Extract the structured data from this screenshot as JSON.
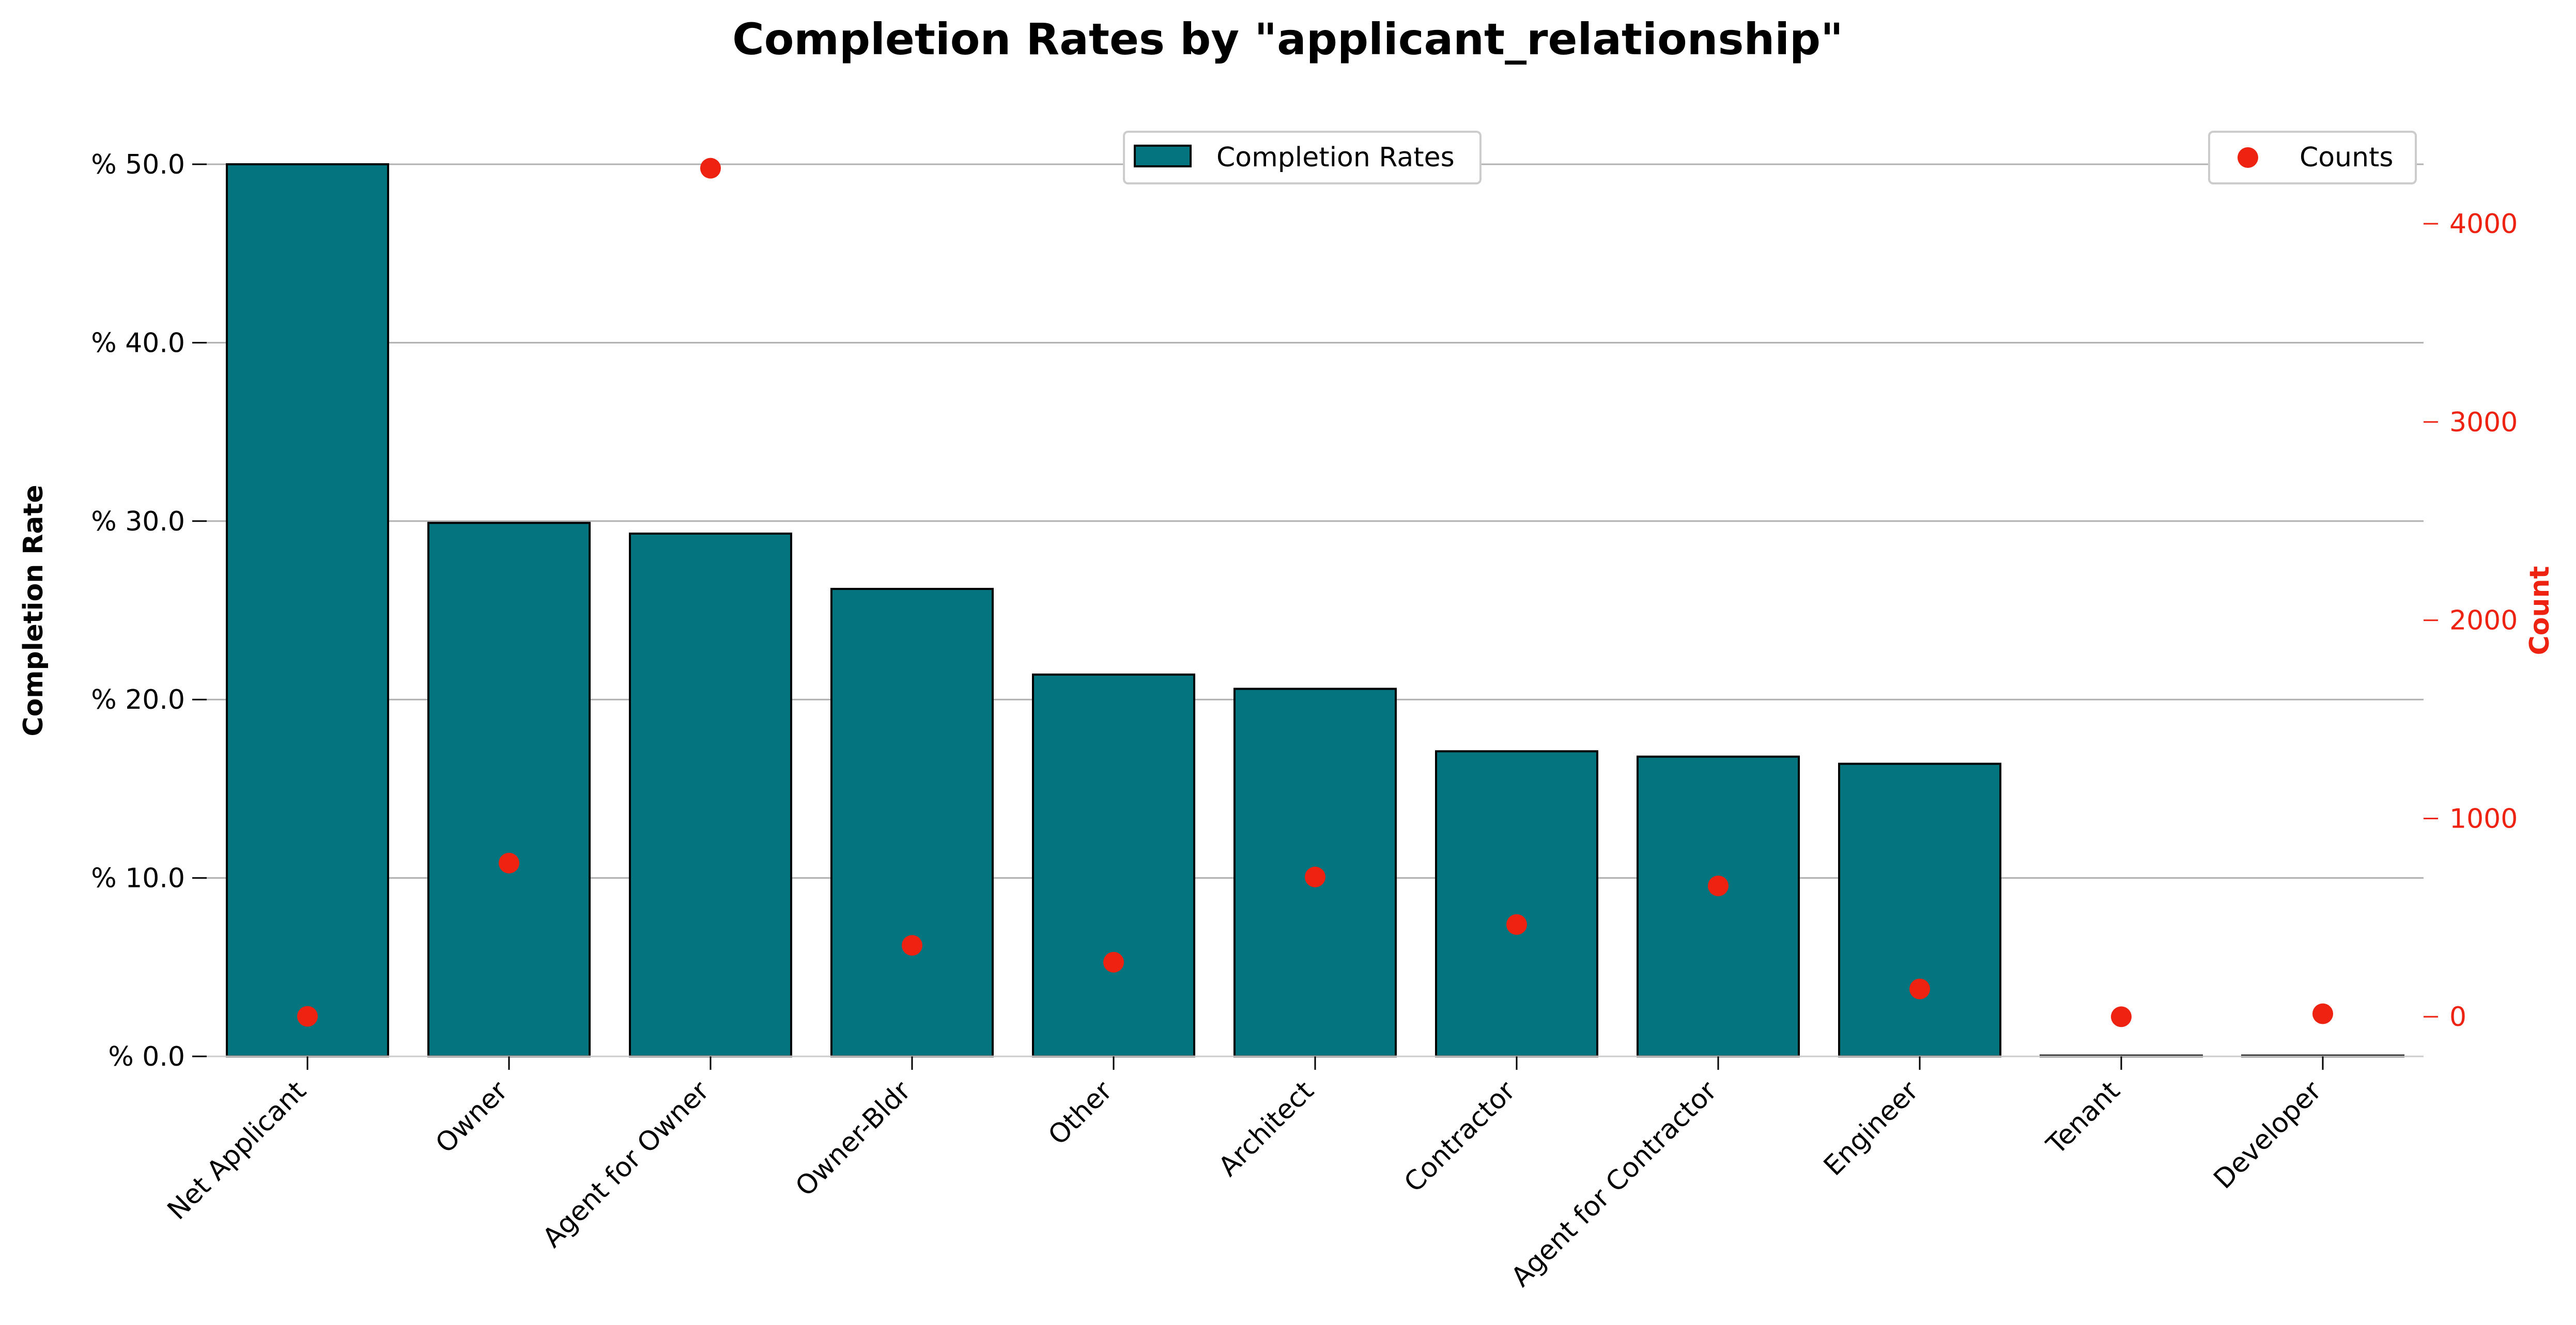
{
  "colors": {
    "bar": "#04747f",
    "bar_edge": "#000000",
    "counts": "#ee2211",
    "grid": "#b0b0b0",
    "axis": "#cccccc"
  },
  "chart_data": {
    "type": "bar",
    "title": "Completion Rates by \"applicant_relationship\"",
    "xlabel": "",
    "ylabel": "Completion Rate",
    "ylabel_right": "Count",
    "categories": [
      "Net Applicant",
      "Owner",
      "Agent for Owner",
      "Owner-Bldr",
      "Other",
      "Architect",
      "Contractor",
      "Agent for Contractor",
      "Engineer",
      "Tenant",
      "Developer"
    ],
    "series": [
      {
        "name": "Completion Rates",
        "axis": "left",
        "kind": "bar",
        "values": [
          50.0,
          29.9,
          29.3,
          26.2,
          21.4,
          20.6,
          17.1,
          16.8,
          16.4,
          0.0,
          0.0
        ]
      },
      {
        "name": "Counts",
        "axis": "right",
        "kind": "scatter",
        "values": [
          2,
          775,
          4280,
          360,
          275,
          705,
          465,
          660,
          140,
          0,
          15
        ]
      }
    ],
    "ylim": [
      0,
      50
    ],
    "ylim_right": [
      -200,
      4300
    ],
    "yticks": [
      0,
      10,
      20,
      30,
      40,
      50
    ],
    "ytick_labels": [
      "% 0.0",
      "% 10.0",
      "% 20.0",
      "% 30.0",
      "% 40.0",
      "% 50.0"
    ],
    "yticks_right": [
      0,
      1000,
      2000,
      3000,
      4000
    ],
    "ytick_labels_right": [
      "0",
      "1000",
      "2000",
      "3000",
      "4000"
    ],
    "grid": true,
    "legend_bars": "top-center",
    "legend_counts": "top-right"
  }
}
